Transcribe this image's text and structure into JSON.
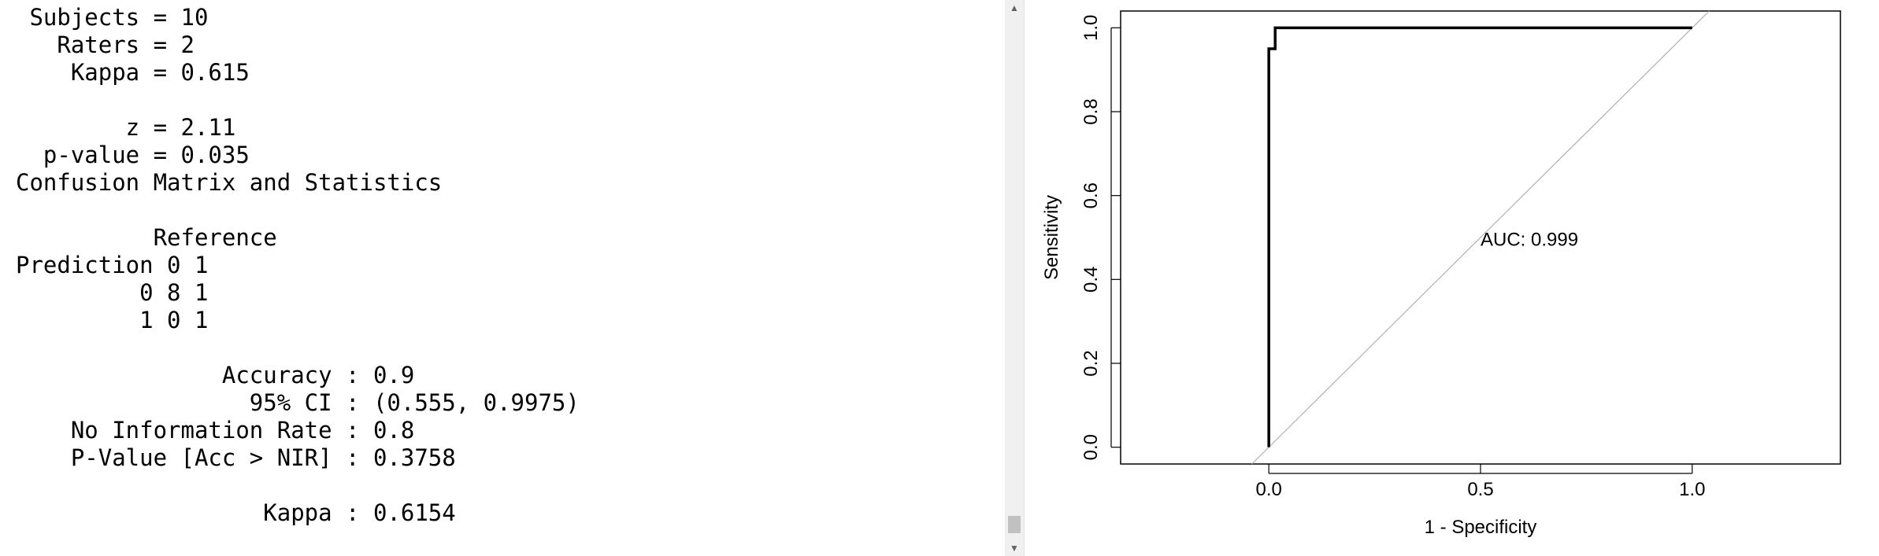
{
  "console": {
    "lines": [
      " Subjects = 10",
      "   Raters = 2",
      "    Kappa = 0.615",
      "",
      "        z = 2.11",
      "  p-value = 0.035",
      "Confusion Matrix and Statistics",
      "",
      "          Reference",
      "Prediction 0 1",
      "         0 8 1",
      "         1 0 1",
      "",
      "               Accuracy : 0.9",
      "                 95% CI : (0.555, 0.9975)",
      "    No Information Rate : 0.8",
      "    P-Value [Acc > NIR] : 0.3758",
      "",
      "                  Kappa : 0.6154"
    ]
  },
  "scrollbar": {
    "up_icon": "triangle-up-icon",
    "down_icon": "triangle-down-icon",
    "position": 0.97
  },
  "chart_data": {
    "type": "line",
    "title": "",
    "xlabel": "1 - Specificity",
    "ylabel": "Sensitivity",
    "xlim": [
      -0.35,
      1.35
    ],
    "ylim": [
      -0.04,
      1.04
    ],
    "x_ticks": [
      0.0,
      0.5,
      1.0
    ],
    "x_tick_labels": [
      "0.0",
      "0.5",
      "1.0"
    ],
    "y_ticks": [
      0.0,
      0.2,
      0.4,
      0.6,
      0.8,
      1.0
    ],
    "y_tick_labels": [
      "0.0",
      "0.2",
      "0.4",
      "0.6",
      "0.8",
      "1.0"
    ],
    "grid": false,
    "series": [
      {
        "color": "#000000",
        "x": [
          0.0,
          0.0,
          0.015,
          0.015,
          0.05,
          1.0
        ],
        "y": [
          0.0,
          0.95,
          0.95,
          1.0,
          1.0,
          1.0
        ]
      }
    ],
    "reference_line": {
      "color": "#b0b0b0",
      "x": [
        -0.04,
        1.04
      ],
      "y": [
        -0.04,
        1.04
      ]
    },
    "annotation": {
      "text": "AUC: 0.999",
      "x": 0.5,
      "y": 0.48
    }
  }
}
